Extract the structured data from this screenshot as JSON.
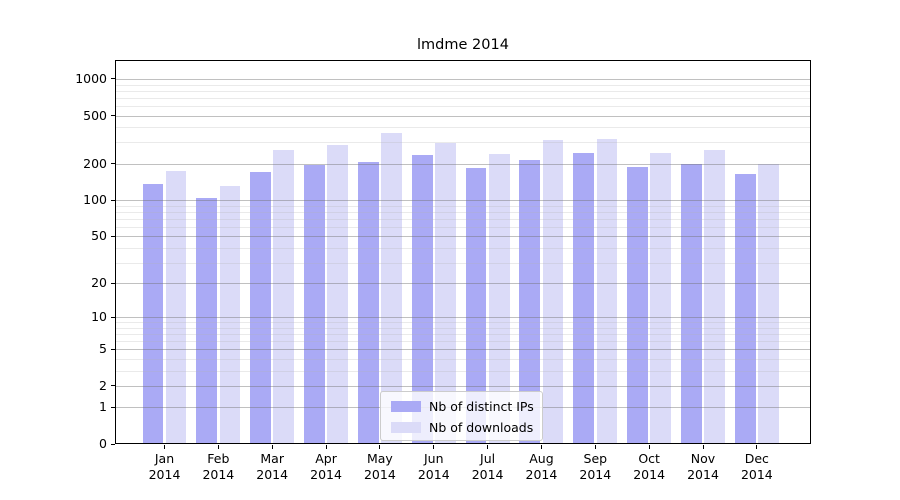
{
  "chart_data": {
    "type": "bar",
    "title": "lmdme 2014",
    "categories": [
      "Jan 2014",
      "Feb 2014",
      "Mar 2014",
      "Apr 2014",
      "May 2014",
      "Jun 2014",
      "Jul 2014",
      "Aug 2014",
      "Sep 2014",
      "Oct 2014",
      "Nov 2014",
      "Dec 2014"
    ],
    "series": [
      {
        "name": "Nb of distinct IPs",
        "color": "#aaaaf5",
        "values": [
          135,
          105,
          170,
          197,
          208,
          237,
          186,
          215,
          246,
          190,
          200,
          165
        ]
      },
      {
        "name": "Nb of downloads",
        "color": "#dbdbf8",
        "values": [
          175,
          130,
          258,
          288,
          360,
          297,
          242,
          312,
          320,
          245,
          262,
          200
        ]
      }
    ],
    "xlabel": "",
    "ylabel": "",
    "yscale": "log10(1+y)",
    "ylim": [
      0,
      1433
    ],
    "y_major_ticks": [
      0,
      1,
      2,
      5,
      10,
      20,
      50,
      100,
      200,
      500,
      1000
    ],
    "y_minor_ticks": [
      3,
      4,
      6,
      7,
      8,
      9,
      30,
      40,
      60,
      70,
      80,
      90,
      300,
      400,
      600,
      700,
      800,
      900
    ],
    "grid": true,
    "legend_position": "lower center"
  },
  "colors": {
    "background": "#ffffff",
    "axis": "#000000",
    "grid_major": "rgba(115,115,115,0.45)",
    "grid_minor": "rgba(180,180,180,0.28)",
    "legend_border": "#cccccc"
  }
}
